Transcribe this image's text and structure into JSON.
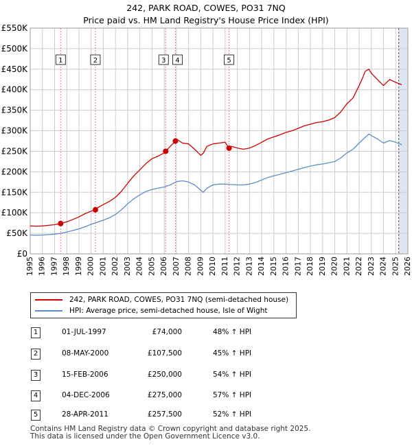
{
  "title_line1": "242, PARK ROAD, COWES, PO31 7NQ",
  "title_line2": "Price paid vs. HM Land Registry's House Price Index (HPI)",
  "colors": {
    "property": "#cc0000",
    "hpi": "#5b8cc8",
    "band": "#dde6f2",
    "grid": "#cccccc"
  },
  "chart_data": {
    "type": "line",
    "ylim": [
      0,
      550000
    ],
    "xlim": [
      1995,
      2026
    ],
    "y_ticks": [
      0,
      50000,
      100000,
      150000,
      200000,
      250000,
      300000,
      350000,
      400000,
      450000,
      500000,
      550000
    ],
    "y_tick_labels": [
      "£0",
      "£50K",
      "£100K",
      "£150K",
      "£200K",
      "£250K",
      "£300K",
      "£350K",
      "£400K",
      "£450K",
      "£500K",
      "£550K"
    ],
    "x_ticks": [
      1995,
      1996,
      1997,
      1998,
      1999,
      2000,
      2001,
      2002,
      2003,
      2004,
      2005,
      2006,
      2007,
      2008,
      2009,
      2010,
      2011,
      2012,
      2013,
      2014,
      2015,
      2016,
      2017,
      2018,
      2019,
      2020,
      2021,
      2022,
      2023,
      2024,
      2025,
      2026
    ],
    "x_tick_labels": [
      "1995",
      "1996",
      "1997",
      "1998",
      "1999",
      "2000",
      "2001",
      "2002",
      "2003",
      "2004",
      "2005",
      "2006",
      "2007",
      "2008",
      "2009",
      "2010",
      "2011",
      "2012",
      "2013",
      "2014",
      "2015",
      "2016",
      "2017",
      "2018",
      "2019",
      "2020",
      "2021",
      "2022",
      "2023",
      "2024",
      "2025",
      "2026"
    ],
    "projection_start": 2025.25,
    "series": [
      {
        "name": "242, PARK ROAD, COWES, PO31 7NQ (semi-detached house)",
        "x": [
          1995,
          1995.5,
          1996,
          1996.5,
          1997,
          1997.5,
          1998,
          1998.5,
          1999,
          1999.5,
          2000,
          2000.37,
          2000.5,
          2001,
          2001.5,
          2002,
          2002.5,
          2003,
          2003.5,
          2004,
          2004.5,
          2005,
          2005.5,
          2006,
          2006.12,
          2006.5,
          2006.92,
          2007,
          2007.5,
          2008,
          2008.5,
          2009,
          2009.2,
          2009.5,
          2010,
          2010.5,
          2011,
          2011.32,
          2011.5,
          2012,
          2012.5,
          2013,
          2013.5,
          2014,
          2014.5,
          2015,
          2015.5,
          2016,
          2016.5,
          2017,
          2017.5,
          2018,
          2018.5,
          2019,
          2019.5,
          2020,
          2020.5,
          2021,
          2021.5,
          2022,
          2022.3,
          2022.5,
          2022.8,
          2023,
          2023.5,
          2024,
          2024.5,
          2025,
          2025.5
        ],
        "y": [
          68000,
          67500,
          68000,
          69500,
          71000,
          74000,
          78000,
          84000,
          90000,
          98000,
          104000,
          107500,
          112000,
          120000,
          128000,
          138000,
          153000,
          172000,
          190000,
          205000,
          220000,
          232000,
          238000,
          246000,
          250000,
          262000,
          275000,
          280000,
          270000,
          268000,
          255000,
          240000,
          245000,
          262000,
          268000,
          270000,
          272000,
          257500,
          262000,
          258000,
          255000,
          258000,
          264000,
          272000,
          280000,
          285000,
          290000,
          296000,
          300000,
          306000,
          312000,
          316000,
          320000,
          322000,
          326000,
          332000,
          346000,
          366000,
          380000,
          410000,
          430000,
          445000,
          450000,
          440000,
          425000,
          410000,
          425000,
          418000,
          412000
        ]
      },
      {
        "name": "HPI: Average price, semi-detached house, Isle of Wight",
        "x": [
          1995,
          1995.5,
          1996,
          1996.5,
          1997,
          1997.5,
          1998,
          1998.5,
          1999,
          1999.5,
          2000,
          2000.5,
          2001,
          2001.5,
          2002,
          2002.5,
          2003,
          2003.5,
          2004,
          2004.5,
          2005,
          2005.5,
          2006,
          2006.5,
          2007,
          2007.5,
          2008,
          2008.5,
          2009,
          2009.2,
          2009.5,
          2010,
          2010.5,
          2011,
          2011.5,
          2012,
          2012.5,
          2013,
          2013.5,
          2014,
          2014.5,
          2015,
          2015.5,
          2016,
          2016.5,
          2017,
          2017.5,
          2018,
          2018.5,
          2019,
          2019.5,
          2020,
          2020.5,
          2021,
          2021.5,
          2022,
          2022.5,
          2022.8,
          2023,
          2023.5,
          2024,
          2024.5,
          2025,
          2025.5
        ],
        "y": [
          46000,
          45500,
          46000,
          47000,
          48000,
          50000,
          53000,
          57000,
          61000,
          66000,
          72000,
          77000,
          82000,
          88000,
          96000,
          108000,
          122000,
          134000,
          144000,
          152000,
          157000,
          160000,
          163000,
          168000,
          176000,
          178000,
          175000,
          168000,
          155000,
          150000,
          160000,
          168000,
          170000,
          170000,
          169000,
          168000,
          168000,
          170000,
          174000,
          180000,
          186000,
          190000,
          194000,
          198000,
          202000,
          206000,
          210000,
          214000,
          217000,
          219000,
          222000,
          225000,
          234000,
          246000,
          255000,
          270000,
          284000,
          292000,
          288000,
          280000,
          270000,
          276000,
          272000,
          266000
        ]
      }
    ],
    "sales": [
      {
        "label": "1",
        "x": 1997.5,
        "y": 74000
      },
      {
        "label": "2",
        "x": 2000.35,
        "y": 107500
      },
      {
        "label": "3",
        "x": 2006.12,
        "y": 250000
      },
      {
        "label": "4",
        "x": 2006.92,
        "y": 275000
      },
      {
        "label": "5",
        "x": 2011.32,
        "y": 257500
      }
    ]
  },
  "legend": {
    "property": "242, PARK ROAD, COWES, PO31 7NQ (semi-detached house)",
    "hpi": "HPI: Average price, semi-detached house, Isle of Wight"
  },
  "transactions": [
    {
      "num": "1",
      "date": "01-JUL-1997",
      "price": "£74,000",
      "hpi": "48% ↑ HPI"
    },
    {
      "num": "2",
      "date": "08-MAY-2000",
      "price": "£107,500",
      "hpi": "45% ↑ HPI"
    },
    {
      "num": "3",
      "date": "15-FEB-2006",
      "price": "£250,000",
      "hpi": "54% ↑ HPI"
    },
    {
      "num": "4",
      "date": "04-DEC-2006",
      "price": "£275,000",
      "hpi": "57% ↑ HPI"
    },
    {
      "num": "5",
      "date": "28-APR-2011",
      "price": "£257,500",
      "hpi": "52% ↑ HPI"
    }
  ],
  "footer_line1": "Contains HM Land Registry data © Crown copyright and database right 2025.",
  "footer_line2": "This data is licensed under the Open Government Licence v3.0."
}
